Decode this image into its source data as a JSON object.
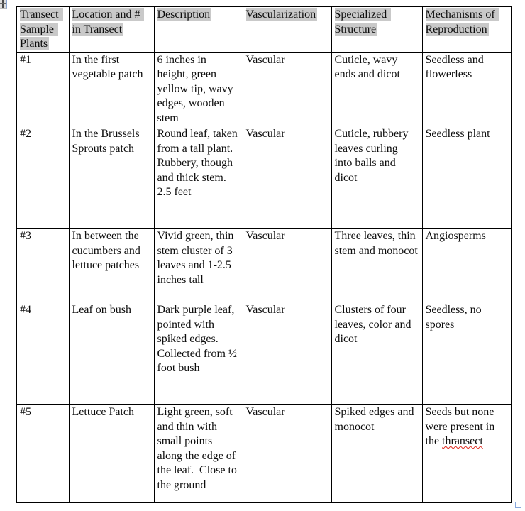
{
  "document": {
    "background_color": "#ffffff",
    "header_highlight_color": "#c9c9c9",
    "border_color": "#000000",
    "spellcheck_color": "#e02b20",
    "resize_handle_color": "#86a7dc"
  },
  "table": {
    "headers": [
      {
        "label": "Transect Sample Plants"
      },
      {
        "label": "Location and # in Transect"
      },
      {
        "label": "Description"
      },
      {
        "label": "Vascularization"
      },
      {
        "label": "Specialized Structure"
      },
      {
        "label": "Mechanisms of Reproduction"
      }
    ],
    "rows": [
      {
        "sample": "#1",
        "location": "In the first vegetable patch",
        "description": "6 inches in height, green yellow tip, wavy edges, wooden stem",
        "vascularization": "Vascular",
        "structure": "Cuticle, wavy ends and dicot",
        "reproduction": "Seedless and flowerless"
      },
      {
        "sample": "#2",
        "location": "In the Brussels Sprouts patch",
        "description": "Round leaf, taken from a tall plant. Rubbery, though and thick stem. 2.5 feet",
        "vascularization": "Vascular",
        "structure": "Cuticle, rubbery leaves curling into balls and dicot",
        "reproduction": "Seedless plant"
      },
      {
        "sample": "#3",
        "location": "In between the cucumbers and lettuce patches",
        "description": "Vivid green, thin stem cluster of 3 leaves and 1-2.5 inches tall",
        "vascularization": "Vascular",
        "structure": "Three leaves, thin stem and monocot",
        "reproduction": "Angiosperms"
      },
      {
        "sample": "#4",
        "location": "Leaf on bush",
        "description": "Dark purple leaf, pointed with spiked edges. Collected from ½ foot bush",
        "vascularization": "Vascular",
        "structure": "Clusters of four leaves, color and dicot",
        "reproduction": "Seedless, no spores"
      },
      {
        "sample": "#5",
        "location": "Lettuce Patch",
        "description": "Light green, soft and thin with small points along the edge of the leaf.  Close to the ground",
        "vascularization": "Vascular",
        "structure": "Spiked edges and monocot",
        "reproduction_prefix": "Seeds but none were present in the ",
        "reproduction_misspelled": "thransect"
      }
    ]
  }
}
